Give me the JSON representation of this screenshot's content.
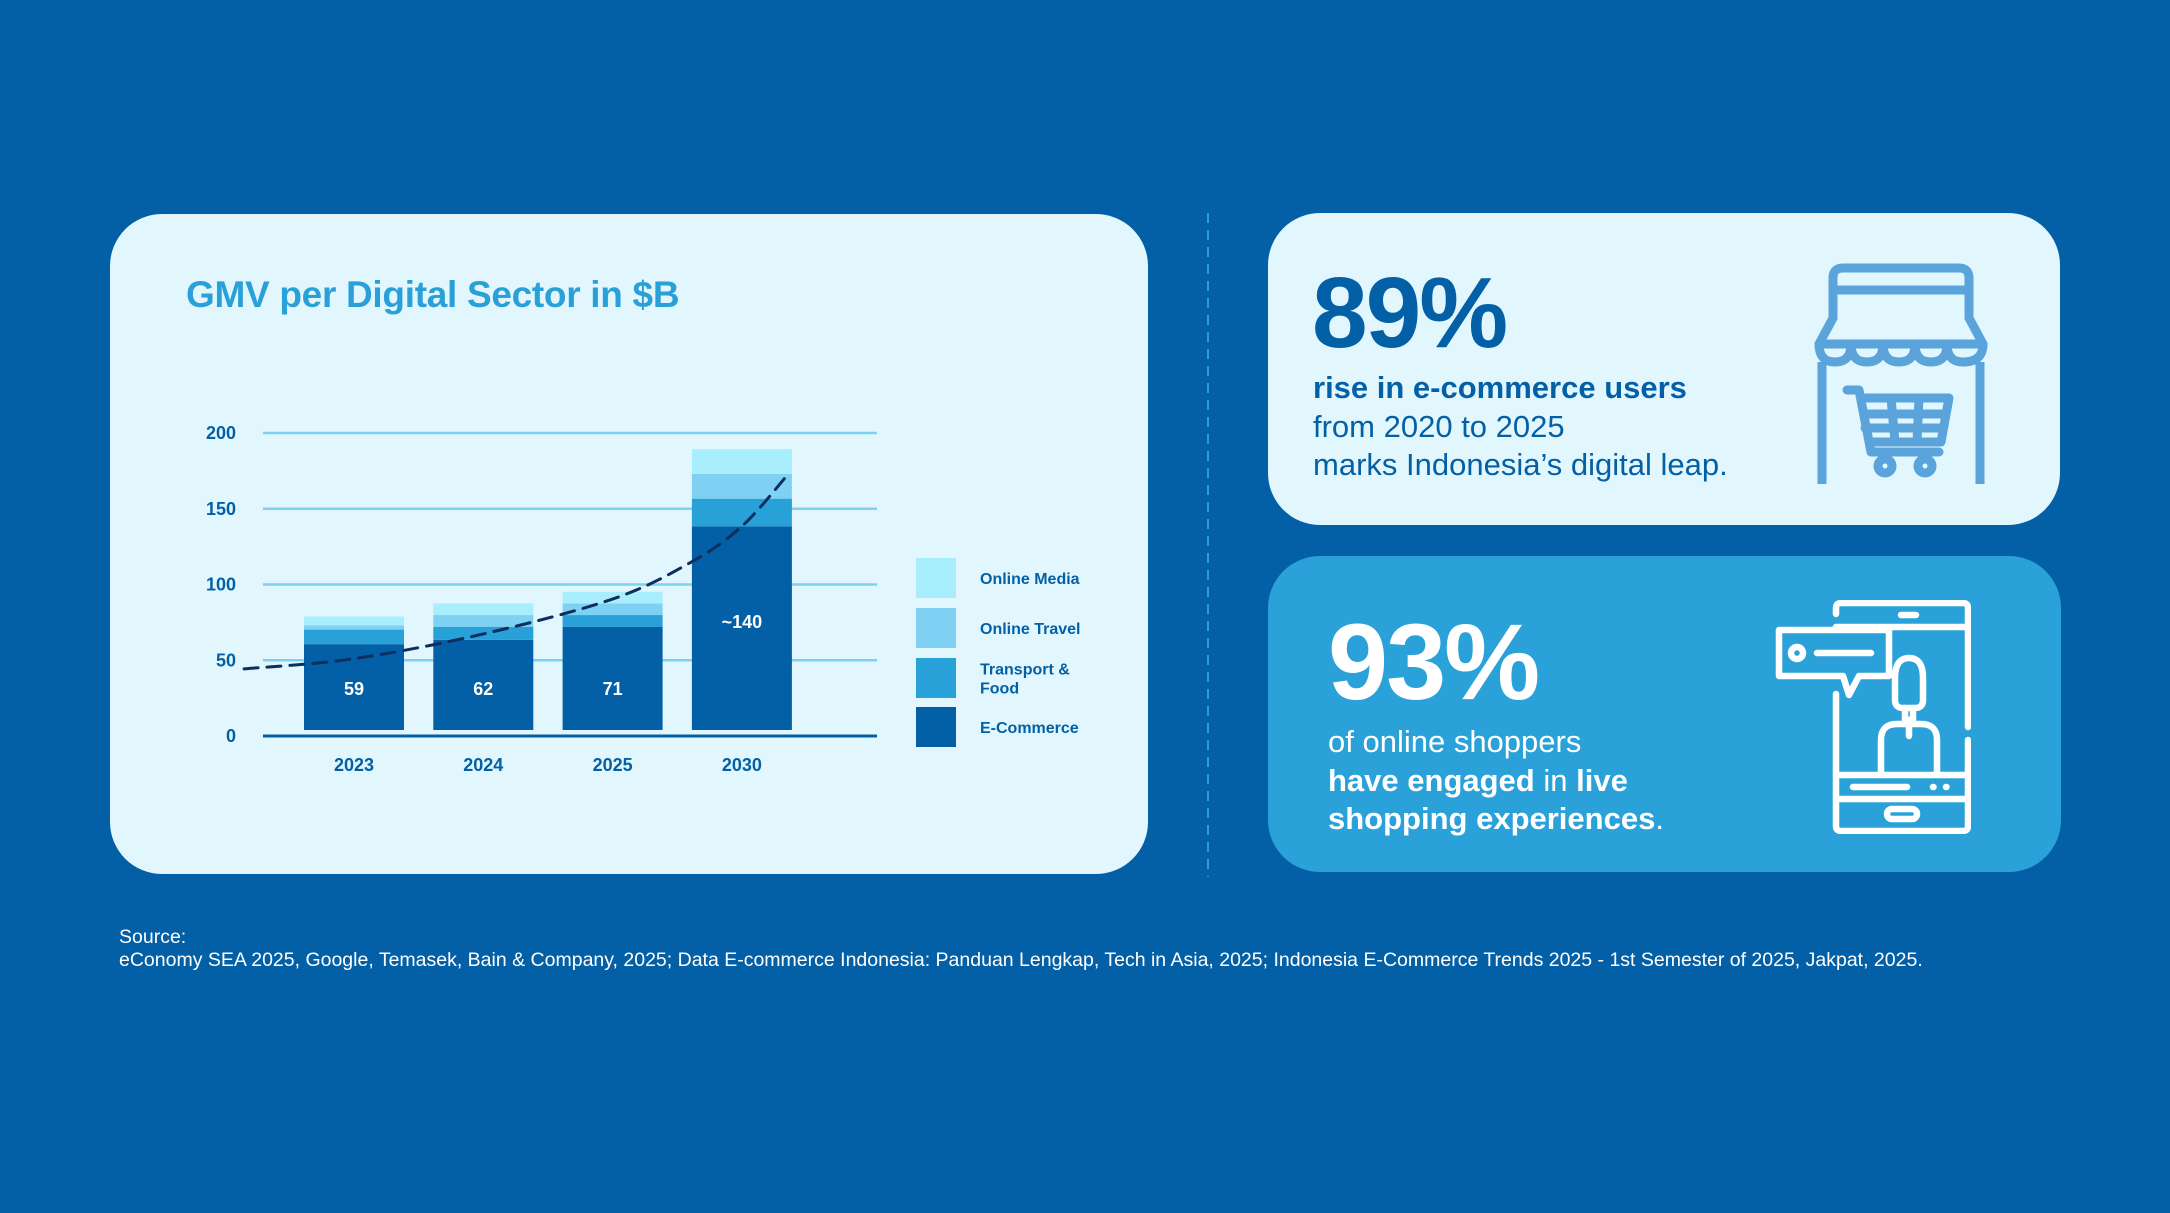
{
  "colors": {
    "background": "#0460A6",
    "card_light": "#E1F7FD",
    "card_accent": "#2AA2D9",
    "online_media": "#A8EEFC",
    "online_travel": "#7FD1F3",
    "transport_food": "#28A0D8",
    "e_commerce": "#0460A6",
    "trend_line": "#0D2F5E",
    "gridline": "#7FD1F3"
  },
  "chart_data": {
    "type": "bar",
    "stacked": true,
    "title": "GMV per Digital Sector in $B",
    "xlabel": "",
    "ylabel": "",
    "categories": [
      "2023",
      "2024",
      "2025",
      "2030"
    ],
    "series": [
      {
        "name": "E-Commerce",
        "values": [
          59,
          62,
          71,
          140
        ]
      },
      {
        "name": "Transport & Food",
        "values": [
          10,
          9,
          8,
          19
        ]
      },
      {
        "name": "Online Travel",
        "values": [
          3,
          8,
          8,
          17
        ]
      },
      {
        "name": "Online Media",
        "values": [
          6,
          8,
          8,
          17
        ]
      }
    ],
    "data_labels": [
      "59",
      "62",
      "71",
      "~140"
    ],
    "ylim": [
      0,
      200
    ],
    "yticks": [
      0,
      50,
      100,
      150,
      200
    ],
    "ytick_labels": [
      "0",
      "50",
      "100",
      "150",
      "200"
    ],
    "grid": true,
    "legend": {
      "position": "right",
      "entries": [
        "Online Media",
        "Online Travel",
        "Transport & Food",
        "E-Commerce"
      ],
      "entry_lines": [
        [
          "Online Media"
        ],
        [
          "Online Travel"
        ],
        [
          "Transport &",
          "Food"
        ],
        [
          "E-Commerce"
        ]
      ]
    },
    "trend_line": {
      "style": "dashed",
      "description": "exponential growth trend",
      "points": [
        [
          -0.85,
          42
        ],
        [
          0,
          49
        ],
        [
          1,
          66
        ],
        [
          2,
          90
        ],
        [
          2.6,
          115
        ],
        [
          3,
          140
        ],
        [
          3.35,
          175
        ]
      ]
    }
  },
  "stats": [
    {
      "number": "89%",
      "lines": [
        [
          {
            "text": "rise in e-commerce users",
            "bold": true
          }
        ],
        [
          {
            "text": "from 2020 to 2025",
            "bold": false
          }
        ],
        [
          {
            "text": "marks Indonesia’s digital leap.",
            "bold": false
          }
        ]
      ],
      "icon": "storefront-cart-icon"
    },
    {
      "number": "93%",
      "lines": [
        [
          {
            "text": "of online shoppers",
            "bold": false
          }
        ],
        [
          {
            "text": "have engaged",
            "bold": true
          },
          {
            "text": " in ",
            "bold": false
          },
          {
            "text": "live",
            "bold": true
          }
        ],
        [
          {
            "text": "shopping experiences",
            "bold": true
          },
          {
            "text": ".",
            "bold": false
          }
        ]
      ],
      "icon": "live-shopping-phone-icon"
    }
  ],
  "source": {
    "label": "Source:",
    "text": "eConomy SEA 2025, Google, Temasek, Bain & Company, 2025; Data E-commerce Indonesia: Panduan Lengkap, Tech in Asia, 2025; Indonesia E-Commerce Trends 2025 - 1st Semester of 2025, Jakpat, 2025."
  }
}
